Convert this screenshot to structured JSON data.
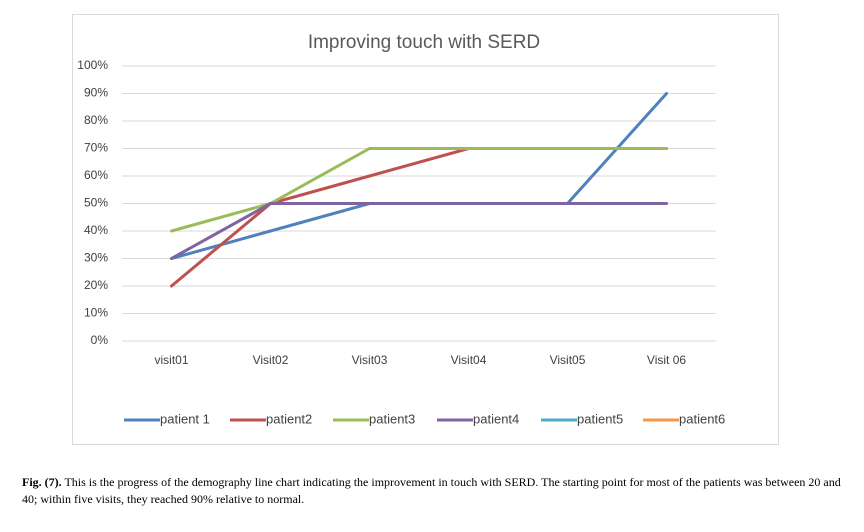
{
  "chart_data": {
    "type": "line",
    "title": "Improving touch with SERD",
    "categories": [
      "visit01",
      "Visit02",
      "Visit03",
      "Visit04",
      "Visit05",
      "Visit 06"
    ],
    "series": [
      {
        "name": "patient 1",
        "color": "#4f81bd",
        "values": [
          30,
          40,
          50,
          50,
          50,
          90
        ]
      },
      {
        "name": "patient2",
        "color": "#c0504d",
        "values": [
          20,
          50,
          60,
          70,
          70,
          70
        ]
      },
      {
        "name": "patient3",
        "color": "#9bbb59",
        "values": [
          40,
          50,
          70,
          70,
          70,
          70
        ]
      },
      {
        "name": "patient4",
        "color": "#8064a2",
        "values": [
          30,
          50,
          50,
          50,
          50,
          50
        ]
      },
      {
        "name": "patient5",
        "color": "#4bacc6",
        "values": [
          null,
          null,
          null,
          null,
          null,
          null
        ]
      },
      {
        "name": "patient6",
        "color": "#f79646",
        "values": [
          null,
          null,
          null,
          null,
          null,
          null
        ]
      }
    ],
    "ylim": [
      0,
      100
    ],
    "yticks": [
      {
        "value": 0,
        "label": "0%"
      },
      {
        "value": 10,
        "label": "10%"
      },
      {
        "value": 20,
        "label": "20%"
      },
      {
        "value": 30,
        "label": "30%"
      },
      {
        "value": 40,
        "label": "40%"
      },
      {
        "value": 50,
        "label": "50%"
      },
      {
        "value": 60,
        "label": "60%"
      },
      {
        "value": 70,
        "label": "70%"
      },
      {
        "value": 80,
        "label": "80%"
      },
      {
        "value": 90,
        "label": "90%"
      },
      {
        "value": 100,
        "label": "100%"
      }
    ],
    "grid": true,
    "legend": "bottom"
  },
  "caption": {
    "label": "Fig. (7).",
    "text": " This is the progress of the demography line chart indicating the improvement in touch with SERD. The starting point for most of the patients was between 20 and 40; within five visits, they reached 90% relative to normal."
  }
}
